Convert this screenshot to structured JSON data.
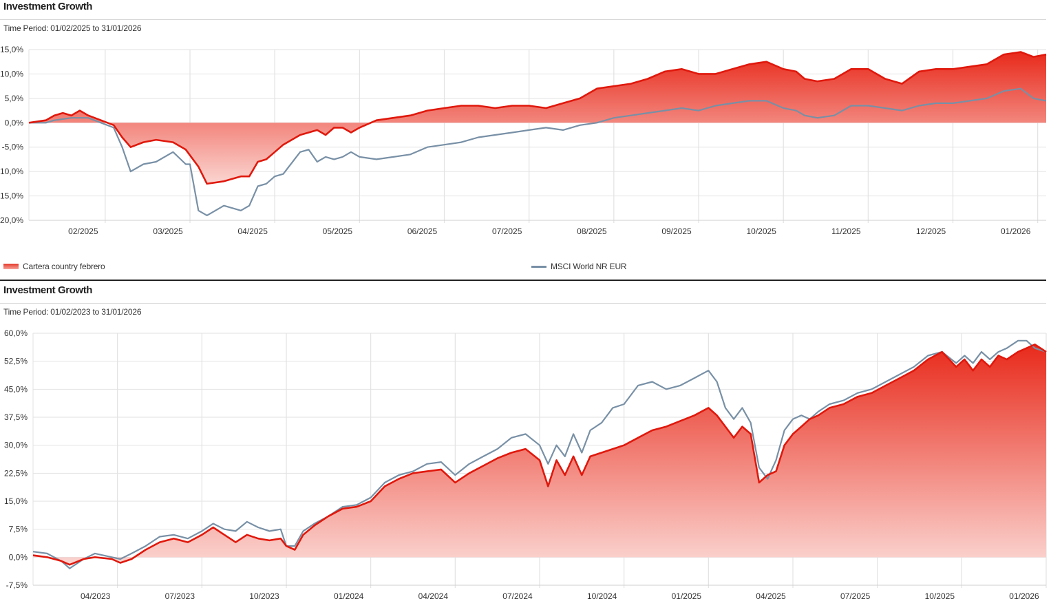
{
  "colors": {
    "portfolio": "#e0180c",
    "benchmark": "#7890a6",
    "grid": "#e2e2e2",
    "area_top": "#e82a1b",
    "area_bottom": "#fbd5d1"
  },
  "legend": {
    "series1": "Cartera country febrero",
    "series2": "MSCI World NR EUR"
  },
  "chart_data": [
    {
      "type": "area",
      "title": "Investment Growth",
      "subtitle": "Time Period: 01/02/2025 to 31/01/2026",
      "ylim": [
        -20,
        15
      ],
      "yticks": [
        15,
        10,
        5,
        0,
        -5,
        -10,
        -15,
        -20
      ],
      "ytick_labels": [
        "15,0%",
        "10,0%",
        "5,0%",
        "0,0%",
        "-5,0%",
        "-10,0%",
        "-15,0%",
        "-20,0%"
      ],
      "x_range": [
        0,
        12
      ],
      "x_ticks": [
        0.9,
        1.9,
        2.9,
        3.9,
        4.9,
        5.9,
        6.9,
        7.9,
        8.9,
        9.9,
        10.9,
        11.9
      ],
      "x_labels": [
        "02/2025",
        "03/2025",
        "04/2025",
        "05/2025",
        "06/2025",
        "07/2025",
        "08/2025",
        "09/2025",
        "10/2025",
        "11/2025",
        "12/2025",
        "01/2026"
      ],
      "series": [
        {
          "name": "Cartera country febrero",
          "x": [
            0,
            0.2,
            0.3,
            0.4,
            0.5,
            0.6,
            0.7,
            0.85,
            1.0,
            1.1,
            1.2,
            1.35,
            1.5,
            1.7,
            1.85,
            2.0,
            2.1,
            2.3,
            2.5,
            2.6,
            2.7,
            2.8,
            2.9,
            3.0,
            3.2,
            3.3,
            3.4,
            3.5,
            3.6,
            3.7,
            3.8,
            3.9,
            4.1,
            4.3,
            4.5,
            4.7,
            4.9,
            5.1,
            5.3,
            5.5,
            5.7,
            5.9,
            6.1,
            6.3,
            6.5,
            6.7,
            6.9,
            7.1,
            7.3,
            7.5,
            7.7,
            7.9,
            8.1,
            8.3,
            8.5,
            8.7,
            8.9,
            9.05,
            9.15,
            9.3,
            9.5,
            9.7,
            9.9,
            10.1,
            10.3,
            10.5,
            10.7,
            10.9,
            11.1,
            11.3,
            11.5,
            11.7,
            11.85,
            12.0
          ],
          "y": [
            0,
            0.5,
            1.5,
            2,
            1.5,
            2.5,
            1.5,
            0.5,
            -0.5,
            -3,
            -5,
            -4,
            -3.5,
            -4,
            -5.5,
            -9,
            -12.5,
            -12,
            -11,
            -11,
            -8,
            -7.5,
            -6,
            -4.5,
            -2.5,
            -2,
            -1.5,
            -2.5,
            -1,
            -1,
            -2,
            -1,
            0.5,
            1,
            1.5,
            2.5,
            3,
            3.5,
            3.5,
            3,
            3.5,
            3.5,
            3,
            4,
            5,
            7,
            7.5,
            8,
            9,
            10.5,
            11,
            10,
            10,
            11,
            12,
            12.5,
            11,
            10.5,
            9,
            8.5,
            9,
            11,
            11,
            9,
            8,
            10.5,
            11,
            11,
            11.5,
            12,
            14,
            14.5,
            13.5,
            14
          ]
        },
        {
          "name": "MSCI World NR EUR",
          "x": [
            0,
            0.2,
            0.3,
            0.5,
            0.6,
            0.7,
            0.85,
            1.0,
            1.1,
            1.2,
            1.35,
            1.5,
            1.7,
            1.85,
            1.9,
            2.0,
            2.1,
            2.3,
            2.5,
            2.6,
            2.7,
            2.8,
            2.9,
            3.0,
            3.2,
            3.3,
            3.4,
            3.5,
            3.6,
            3.7,
            3.8,
            3.9,
            4.1,
            4.3,
            4.5,
            4.7,
            4.9,
            5.1,
            5.3,
            5.5,
            5.7,
            5.9,
            6.1,
            6.3,
            6.5,
            6.7,
            6.9,
            7.1,
            7.3,
            7.5,
            7.7,
            7.9,
            8.1,
            8.3,
            8.5,
            8.7,
            8.9,
            9.05,
            9.15,
            9.3,
            9.5,
            9.7,
            9.9,
            10.1,
            10.3,
            10.5,
            10.7,
            10.9,
            11.1,
            11.3,
            11.5,
            11.7,
            11.85,
            12.0
          ],
          "y": [
            0,
            0,
            0.5,
            1,
            1,
            1,
            0,
            -1,
            -5,
            -10,
            -8.5,
            -8,
            -6,
            -8.5,
            -8.5,
            -18,
            -19,
            -17,
            -18,
            -17,
            -13,
            -12.5,
            -11,
            -10.5,
            -6,
            -5.5,
            -8,
            -7,
            -7.5,
            -7,
            -6,
            -7,
            -7.5,
            -7,
            -6.5,
            -5,
            -4.5,
            -4,
            -3,
            -2.5,
            -2,
            -1.5,
            -1,
            -1.5,
            -0.5,
            0,
            1,
            1.5,
            2,
            2.5,
            3,
            2.5,
            3.5,
            4,
            4.5,
            4.5,
            3,
            2.5,
            1.5,
            1,
            1.5,
            3.5,
            3.5,
            3,
            2.5,
            3.5,
            4,
            4,
            4.5,
            5,
            6.5,
            7,
            5,
            4.5
          ]
        }
      ]
    },
    {
      "type": "area",
      "title": "Investment Growth",
      "subtitle": "Time Period: 01/02/2023 to 31/01/2026",
      "ylim": [
        -7.5,
        60
      ],
      "yticks": [
        60,
        52.5,
        45,
        37.5,
        30,
        22.5,
        15,
        7.5,
        0,
        -7.5
      ],
      "ytick_labels": [
        "60,0%",
        "52,5%",
        "45,0%",
        "37,5%",
        "30,0%",
        "22,5%",
        "15,0%",
        "7,5%",
        "0,0%",
        "-7,5%"
      ],
      "x_range": [
        0,
        36
      ],
      "x_ticks": [
        3,
        6,
        9,
        12,
        15,
        18,
        21,
        24,
        27,
        30,
        33,
        36
      ],
      "x_labels": [
        "04/2023",
        "07/2023",
        "10/2023",
        "01/2024",
        "04/2024",
        "07/2024",
        "10/2024",
        "01/2025",
        "04/2025",
        "07/2025",
        "10/2025",
        "01/2026"
      ],
      "series": [
        {
          "name": "Cartera country febrero",
          "x": [
            0,
            0.5,
            1.0,
            1.3,
            1.8,
            2.2,
            2.8,
            3.1,
            3.5,
            4.0,
            4.5,
            5.0,
            5.5,
            6.0,
            6.4,
            6.8,
            7.2,
            7.6,
            8.0,
            8.4,
            8.8,
            9.0,
            9.3,
            9.6,
            10.0,
            10.5,
            11.0,
            11.5,
            12.0,
            12.5,
            13.0,
            13.5,
            14.0,
            14.5,
            15.0,
            15.5,
            16.0,
            16.5,
            17.0,
            17.5,
            18.0,
            18.3,
            18.6,
            18.9,
            19.2,
            19.5,
            19.8,
            20.2,
            20.6,
            21.0,
            21.5,
            22.0,
            22.5,
            23.0,
            23.5,
            24.0,
            24.3,
            24.6,
            24.9,
            25.2,
            25.5,
            25.8,
            26.1,
            26.4,
            26.7,
            27.0,
            27.3,
            27.6,
            27.9,
            28.3,
            28.8,
            29.3,
            29.8,
            30.3,
            30.8,
            31.3,
            31.8,
            32.3,
            32.8,
            33.1,
            33.4,
            33.7,
            34.0,
            34.3,
            34.6,
            35.0,
            35.3,
            35.6,
            36.0
          ],
          "y": [
            0.5,
            0,
            -1,
            -2,
            -0.5,
            0,
            -0.5,
            -1.5,
            -0.5,
            2,
            4,
            5,
            4,
            6,
            8,
            6,
            4,
            6,
            5,
            4.5,
            5,
            3,
            2,
            6,
            8.5,
            11,
            13,
            13.5,
            15,
            19,
            21,
            22.5,
            23,
            23.5,
            20,
            22.5,
            24.5,
            26.5,
            28,
            29,
            26,
            19,
            26,
            22,
            27,
            22,
            27,
            28,
            29,
            30,
            32,
            34,
            35,
            36.5,
            38,
            40,
            38,
            35,
            32,
            35,
            33,
            20,
            22,
            23,
            30,
            33,
            35,
            37,
            38,
            40,
            41,
            43,
            44,
            46,
            48,
            50,
            53,
            55,
            51,
            53,
            50,
            53,
            51,
            54,
            53,
            55,
            56,
            57,
            55
          ]
        },
        {
          "name": "MSCI World NR EUR",
          "x": [
            0,
            0.5,
            1.0,
            1.3,
            1.8,
            2.2,
            2.8,
            3.1,
            3.5,
            4.0,
            4.5,
            5.0,
            5.5,
            6.0,
            6.4,
            6.8,
            7.2,
            7.6,
            8.0,
            8.4,
            8.8,
            9.0,
            9.3,
            9.6,
            10.0,
            10.5,
            11.0,
            11.5,
            12.0,
            12.5,
            13.0,
            13.5,
            14.0,
            14.5,
            15.0,
            15.5,
            16.0,
            16.5,
            17.0,
            17.5,
            18.0,
            18.3,
            18.6,
            18.9,
            19.2,
            19.5,
            19.8,
            20.2,
            20.6,
            21.0,
            21.5,
            22.0,
            22.5,
            23.0,
            23.5,
            24.0,
            24.3,
            24.6,
            24.9,
            25.2,
            25.5,
            25.8,
            26.1,
            26.4,
            26.7,
            27.0,
            27.3,
            27.6,
            27.9,
            28.3,
            28.8,
            29.3,
            29.8,
            30.3,
            30.8,
            31.3,
            31.8,
            32.3,
            32.8,
            33.1,
            33.4,
            33.7,
            34.0,
            34.3,
            34.6,
            35.0,
            35.3,
            35.6,
            36.0
          ],
          "y": [
            1.5,
            1,
            -1,
            -3,
            -0.5,
            1,
            0,
            -0.5,
            1,
            3,
            5.5,
            6,
            5,
            7,
            9,
            7.5,
            7,
            9.5,
            8,
            7,
            7.5,
            3,
            3,
            7,
            9,
            11,
            13.5,
            14,
            16,
            20,
            22,
            23,
            25,
            25.5,
            22,
            25,
            27,
            29,
            32,
            33,
            30,
            25,
            30,
            27,
            33,
            28,
            34,
            36,
            40,
            41,
            46,
            47,
            45,
            46,
            48,
            50,
            47,
            40,
            37,
            40,
            36,
            24,
            21,
            26,
            34,
            37,
            38,
            37,
            39,
            41,
            42,
            44,
            45,
            47,
            49,
            51,
            54,
            55,
            52,
            54,
            52,
            55,
            53,
            55,
            56,
            58,
            58,
            56,
            55
          ]
        }
      ]
    }
  ]
}
